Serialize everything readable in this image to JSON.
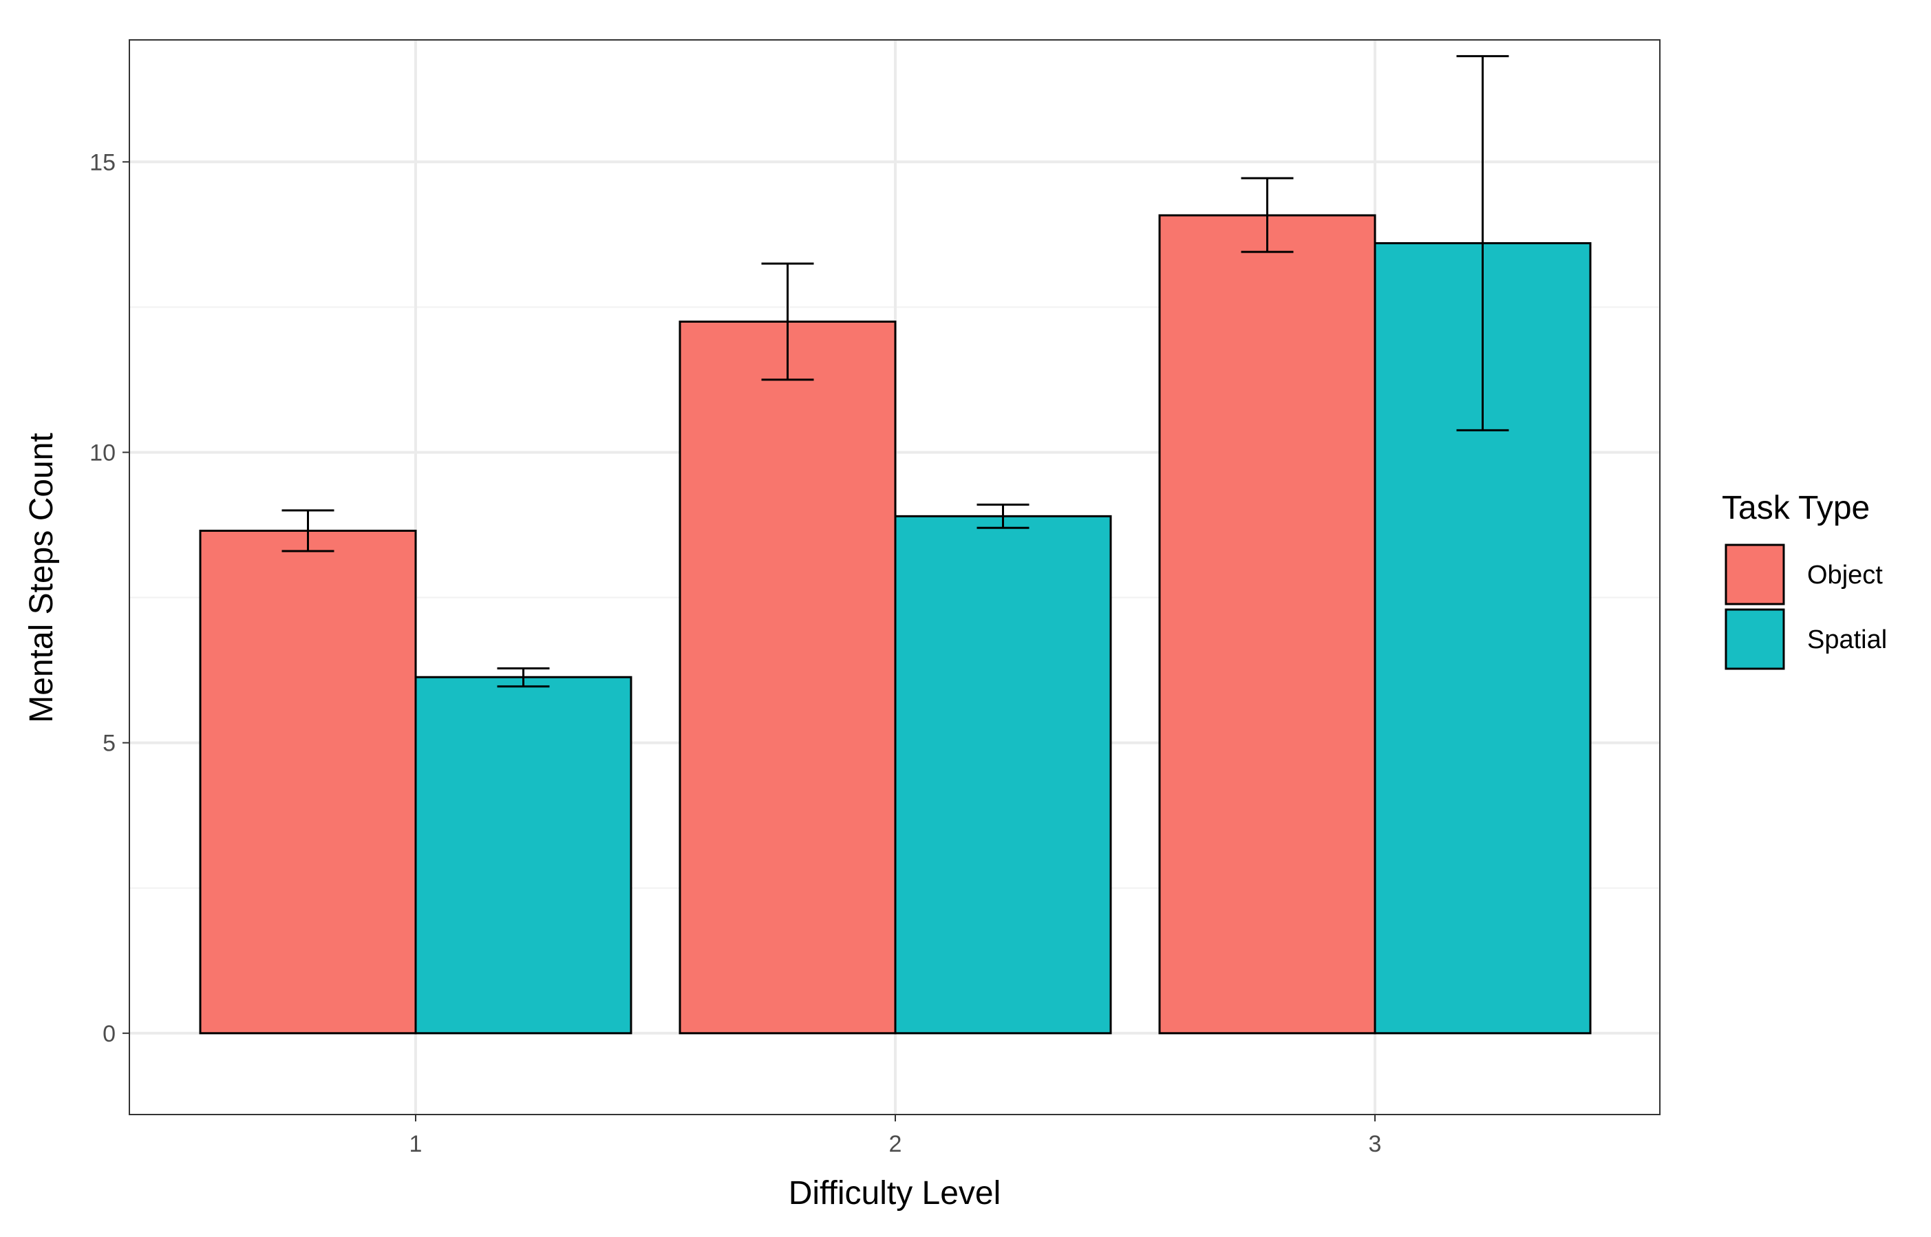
{
  "chart_data": {
    "type": "bar",
    "title": "",
    "xlabel": "Difficulty Level",
    "ylabel": "Mental Steps Count",
    "categories": [
      "1",
      "2",
      "3"
    ],
    "ylim": [
      -1.4,
      17.1
    ],
    "yticks": [
      0,
      5,
      10,
      15
    ],
    "grid": true,
    "legend_title": "Task Type",
    "legend_position": "right",
    "series": [
      {
        "name": "Object",
        "color": "#F8766D",
        "values": [
          8.65,
          12.25,
          14.08
        ],
        "error_low": [
          8.3,
          11.25,
          13.45
        ],
        "error_high": [
          9.0,
          13.25,
          14.72
        ]
      },
      {
        "name": "Spatial",
        "color": "#17BEC3",
        "values": [
          6.13,
          8.9,
          13.6
        ],
        "error_low": [
          5.97,
          8.7,
          10.38
        ],
        "error_high": [
          6.28,
          9.1,
          16.82
        ]
      }
    ]
  }
}
